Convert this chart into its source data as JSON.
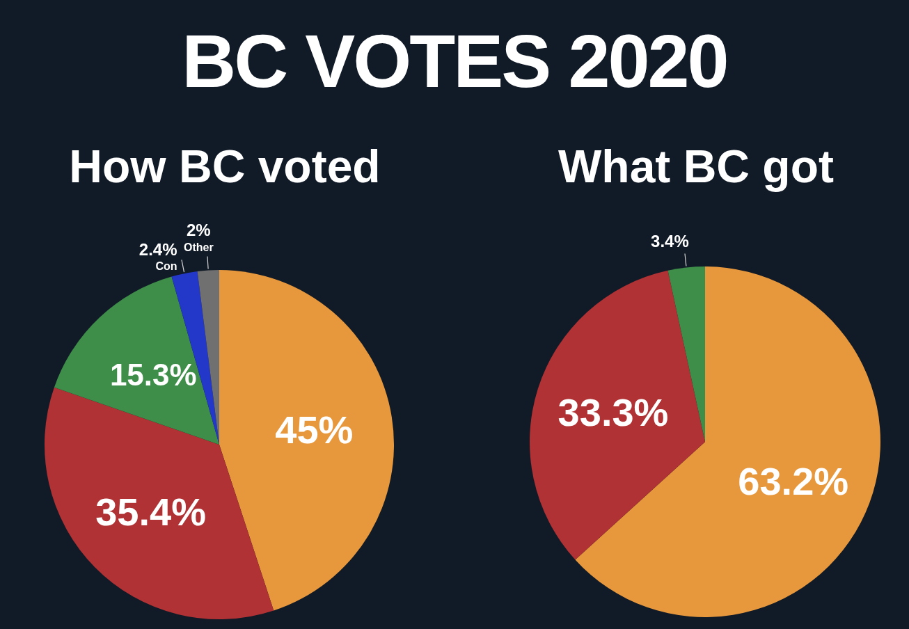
{
  "chart_data": [
    {
      "type": "other",
      "title": "BC VOTES 2020"
    },
    {
      "type": "pie",
      "title": "How BC voted",
      "categories": [
        null,
        null,
        null,
        "Con",
        "Other"
      ],
      "values": [
        45,
        35.4,
        15.3,
        2.4,
        2
      ],
      "colors": [
        "#e8983c",
        "#b03234",
        "#3e8e4a",
        "#2337c8",
        "#707070"
      ],
      "value_labels": [
        "45%",
        "35.4%",
        "15.3%",
        "2.4%",
        "2%"
      ]
    },
    {
      "type": "pie",
      "title": "What BC got",
      "categories": [
        null,
        null,
        null
      ],
      "values": [
        63.2,
        33.3,
        3.4
      ],
      "colors": [
        "#e8983c",
        "#b03234",
        "#3e8e4a"
      ],
      "value_labels": [
        "63.2%",
        "33.3%",
        "3.4%"
      ]
    }
  ]
}
